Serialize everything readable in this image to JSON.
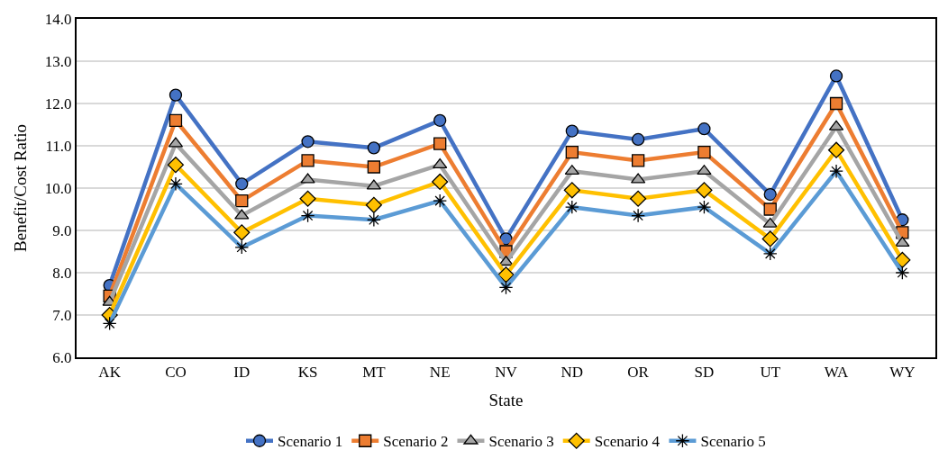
{
  "chart_data": {
    "type": "line",
    "xlabel": "State",
    "ylabel": "Benefit/Cost Ratio",
    "categories": [
      "AK",
      "CO",
      "ID",
      "KS",
      "MT",
      "NE",
      "NV",
      "ND",
      "OR",
      "SD",
      "UT",
      "WA",
      "WY"
    ],
    "series": [
      {
        "name": "Scenario 1",
        "color": "#4472c4",
        "marker": "circle",
        "values": [
          7.7,
          12.2,
          10.1,
          11.1,
          10.95,
          11.6,
          8.8,
          11.35,
          11.15,
          11.4,
          9.85,
          12.65,
          9.25
        ]
      },
      {
        "name": "Scenario 2",
        "color": "#ed7d31",
        "marker": "square",
        "values": [
          7.45,
          11.6,
          9.7,
          10.65,
          10.5,
          11.05,
          8.5,
          10.85,
          10.65,
          10.85,
          9.5,
          12.0,
          8.95
        ]
      },
      {
        "name": "Scenario 3",
        "color": "#a5a5a5",
        "marker": "triangle",
        "values": [
          7.3,
          11.05,
          9.35,
          10.2,
          10.05,
          10.55,
          8.25,
          10.4,
          10.2,
          10.4,
          9.15,
          11.45,
          8.7
        ]
      },
      {
        "name": "Scenario 4",
        "color": "#ffc000",
        "marker": "diamond",
        "values": [
          7.0,
          10.55,
          8.95,
          9.75,
          9.6,
          10.15,
          7.95,
          9.95,
          9.75,
          9.95,
          8.8,
          10.9,
          8.3
        ]
      },
      {
        "name": "Scenario 5",
        "color": "#5b9bd5",
        "marker": "cross",
        "values": [
          6.8,
          10.1,
          8.6,
          9.35,
          9.25,
          9.7,
          7.65,
          9.55,
          9.35,
          9.55,
          8.45,
          10.4,
          8.0
        ]
      }
    ],
    "ylim": [
      6.0,
      14.0
    ],
    "yticks": [
      {
        "value": 6,
        "label": "6.0"
      },
      {
        "value": 7,
        "label": "7.0"
      },
      {
        "value": 8,
        "label": "8.0"
      },
      {
        "value": 9,
        "label": "9.0"
      },
      {
        "value": 10,
        "label": "10.0"
      },
      {
        "value": 11,
        "label": "11.0"
      },
      {
        "value": 12,
        "label": "12.0"
      },
      {
        "value": 13,
        "label": "13.0"
      },
      {
        "value": 14,
        "label": "14.0"
      }
    ],
    "grid": "y",
    "legend": "bottom",
    "line_style": "solid"
  }
}
